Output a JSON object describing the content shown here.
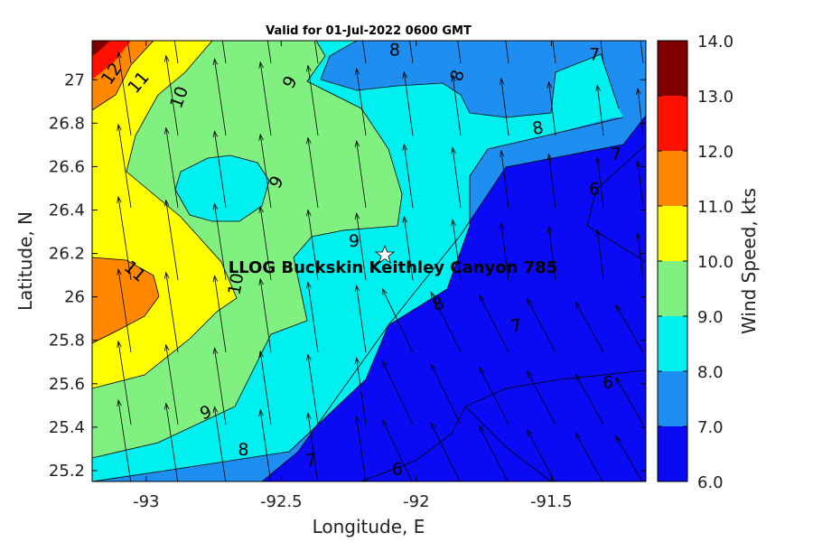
{
  "chart_data": {
    "type": "contour",
    "title": "Valid for 01-Jul-2022 0600 GMT",
    "xlabel": "Longitude, E",
    "ylabel": "Latitude, N",
    "colorbar_label": "Wind Speed, kts",
    "xlim": [
      -93.2,
      -91.15
    ],
    "ylim": [
      25.15,
      27.18
    ],
    "x_ticks": [
      -93,
      -92.5,
      -92,
      -91.5
    ],
    "x_tick_labels": [
      "-93",
      "-92.5",
      "-92",
      "-91.5"
    ],
    "y_ticks": [
      25.2,
      25.4,
      25.6,
      25.8,
      26,
      26.2,
      26.4,
      26.6,
      26.8,
      27
    ],
    "y_tick_labels": [
      "25.2",
      "25.4",
      "25.6",
      "25.8",
      "26",
      "26.2",
      "26.4",
      "26.6",
      "26.8",
      "27"
    ],
    "colorbar_levels": [
      6,
      7,
      8,
      9,
      10,
      11,
      12,
      13,
      14
    ],
    "colorbar_tick_labels": [
      "6.0",
      "7.0",
      "8.0",
      "9.0",
      "10.0",
      "11.0",
      "12.0",
      "13.0",
      "14.0"
    ],
    "colors": [
      "#0a0af5",
      "#1e8ff0",
      "#00f0f0",
      "#80f080",
      "#ffff00",
      "#ff8800",
      "#ff1100",
      "#800000"
    ],
    "contour_labels": [
      {
        "text": "12",
        "lon": -93.13,
        "lat": 27.03,
        "rotate": -55
      },
      {
        "text": "11",
        "lon": -93.03,
        "lat": 26.99,
        "rotate": -50
      },
      {
        "text": "10",
        "lon": -92.88,
        "lat": 26.92,
        "rotate": -70
      },
      {
        "text": "9",
        "lon": -92.47,
        "lat": 26.99,
        "rotate": -60
      },
      {
        "text": "8",
        "lon": -92.08,
        "lat": 27.14,
        "rotate": 0
      },
      {
        "text": "8",
        "lon": -91.85,
        "lat": 27.02,
        "rotate": -75
      },
      {
        "text": "7",
        "lon": -91.34,
        "lat": 27.12,
        "rotate": 0
      },
      {
        "text": "8",
        "lon": -91.55,
        "lat": 26.78,
        "rotate": -10
      },
      {
        "text": "7",
        "lon": -91.26,
        "lat": 26.66,
        "rotate": 0
      },
      {
        "text": "6",
        "lon": -91.34,
        "lat": 26.5,
        "rotate": 0
      },
      {
        "text": "9",
        "lon": -92.52,
        "lat": 26.53,
        "rotate": -60
      },
      {
        "text": "9",
        "lon": -92.23,
        "lat": 26.26,
        "rotate": 0
      },
      {
        "text": "11",
        "lon": -93.04,
        "lat": 26.12,
        "rotate": 40
      },
      {
        "text": "10",
        "lon": -92.67,
        "lat": 26.06,
        "rotate": -80
      },
      {
        "text": "8",
        "lon": -91.92,
        "lat": 25.97,
        "rotate": -20
      },
      {
        "text": "7",
        "lon": -91.63,
        "lat": 25.87,
        "rotate": -10
      },
      {
        "text": "6",
        "lon": -91.29,
        "lat": 25.61,
        "rotate": 0
      },
      {
        "text": "9",
        "lon": -92.78,
        "lat": 25.47,
        "rotate": -20
      },
      {
        "text": "8",
        "lon": -92.64,
        "lat": 25.3,
        "rotate": 0
      },
      {
        "text": "7",
        "lon": -92.39,
        "lat": 25.25,
        "rotate": -10
      },
      {
        "text": "6",
        "lon": -92.07,
        "lat": 25.21,
        "rotate": 0
      }
    ],
    "site": {
      "name": "LLOG Buckskin Keithley Canyon 785",
      "lon": -92.12,
      "lat": 26.2
    }
  }
}
